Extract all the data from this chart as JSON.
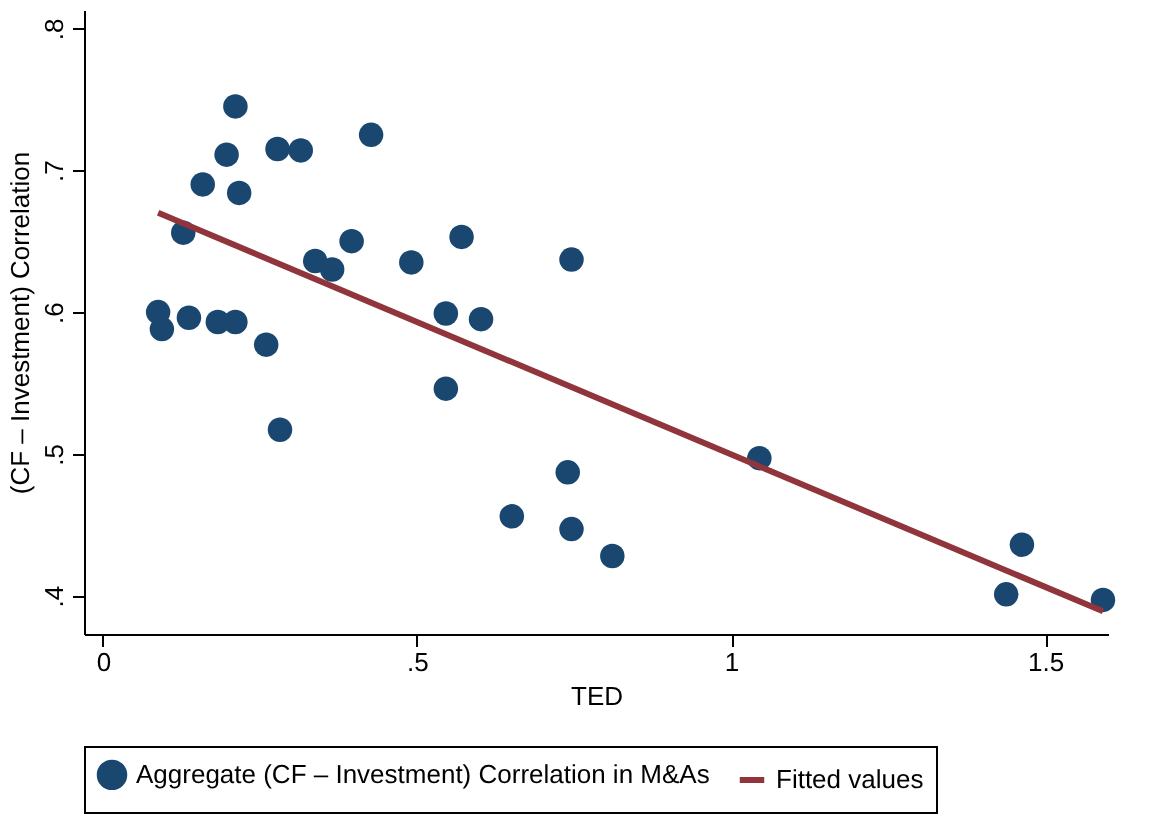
{
  "chart_data": {
    "type": "scatter",
    "xlabel": "TED",
    "ylabel": "(CF – Investment) Correlation",
    "xlim": [
      -0.03,
      1.6
    ],
    "ylim": [
      0.373,
      0.813
    ],
    "xticks": [
      0,
      {
        "value": 0.5,
        "label": ".5"
      },
      1,
      1.5
    ],
    "yticks": [
      {
        "value": 0.4,
        "label": ".4"
      },
      {
        "value": 0.5,
        "label": ".5"
      },
      {
        "value": 0.6,
        "label": ".6"
      },
      {
        "value": 0.7,
        "label": ".7"
      },
      {
        "value": 0.8,
        "label": ".8"
      }
    ],
    "grid": false,
    "legend": "bottom",
    "series": [
      {
        "name": "Aggregate (CF – Investment) Correlation in M&As",
        "marker": "circle",
        "color": "#1a476f",
        "x": [
          0.088,
          0.094,
          0.128,
          0.137,
          0.159,
          0.183,
          0.197,
          0.211,
          0.211,
          0.217,
          0.26,
          0.278,
          0.315,
          0.282,
          0.427,
          0.338,
          0.365,
          0.396,
          0.491,
          0.546,
          0.571,
          0.602,
          0.546,
          0.746,
          0.74,
          0.651,
          0.746,
          0.811,
          1.045,
          1.463,
          1.438,
          1.592
        ],
        "values": [
          0.6,
          0.588,
          0.656,
          0.596,
          0.69,
          0.593,
          0.711,
          0.745,
          0.593,
          0.684,
          0.577,
          0.715,
          0.714,
          0.517,
          0.725,
          0.636,
          0.63,
          0.65,
          0.635,
          0.599,
          0.653,
          0.595,
          0.546,
          0.637,
          0.487,
          0.456,
          0.447,
          0.428,
          0.497,
          0.436,
          0.401,
          0.397
        ]
      },
      {
        "name": "Fitted values",
        "type": "line",
        "color": "#90353b",
        "x": [
          0.088,
          1.592
        ],
        "values": [
          0.67,
          0.389
        ]
      }
    ]
  }
}
